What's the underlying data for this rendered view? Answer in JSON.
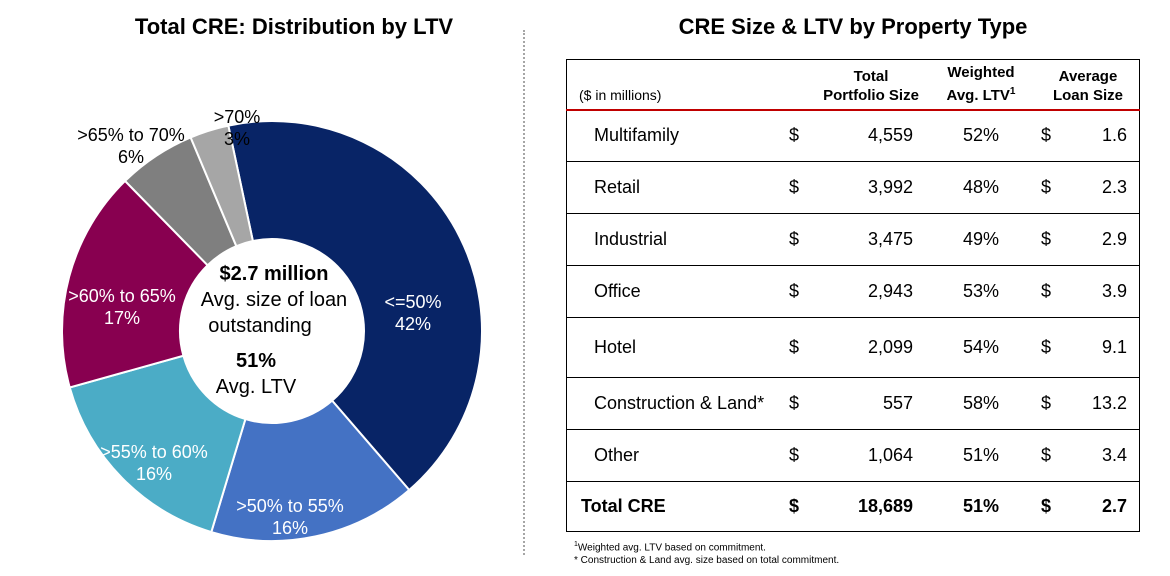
{
  "left_title": "Total CRE: Distribution by LTV",
  "right_title": "CRE Size & LTV by Property Type",
  "colors": {
    "slices": [
      "#082466",
      "#4472c4",
      "#4bacc6",
      "#880050",
      "#7f7f7f",
      "#a6a6a6"
    ],
    "table_header_rule": "#c00000"
  },
  "chart_data": {
    "type": "pie",
    "title": "Total CRE: Distribution by LTV",
    "categories": [
      "<=50%",
      ">50% to 55%",
      ">55% to 60%",
      ">60% to 65%",
      ">65% to 70%",
      ">70%"
    ],
    "values": [
      42,
      16,
      16,
      17,
      6,
      3
    ],
    "value_labels": [
      "42%",
      "16%",
      "16%",
      "17%",
      "6%",
      "3%"
    ],
    "center": {
      "line1": "$2.7 million",
      "line2": "Avg. size of loan",
      "line3": "outstanding",
      "line4": "51%",
      "line5": "Avg. LTV"
    }
  },
  "table": {
    "units_label": "($ in millions)",
    "headers": {
      "size_1": "Total",
      "size_2": "Portfolio Size",
      "ltv_1": "Weighted",
      "ltv_2": "Avg. LTV",
      "ltv_sup": "1",
      "avg_1": "Average",
      "avg_2": "Loan Size"
    },
    "rows": [
      {
        "name": "Multifamily",
        "dollar": "$",
        "size": "4,559",
        "ltv": "52%",
        "dollar2": "$",
        "avg": "1.6"
      },
      {
        "name": "Retail",
        "dollar": "$",
        "size": "3,992",
        "ltv": "48%",
        "dollar2": "$",
        "avg": "2.3"
      },
      {
        "name": "Industrial",
        "dollar": "$",
        "size": "3,475",
        "ltv": "49%",
        "dollar2": "$",
        "avg": "2.9"
      },
      {
        "name": "Office",
        "dollar": "$",
        "size": "2,943",
        "ltv": "53%",
        "dollar2": "$",
        "avg": "3.9"
      },
      {
        "name": "Hotel",
        "dollar": "$",
        "size": "2,099",
        "ltv": "54%",
        "dollar2": "$",
        "avg": "9.1"
      },
      {
        "name": "Construction & Land*",
        "dollar": "$",
        "size": "557",
        "ltv": "58%",
        "dollar2": "$",
        "avg": "13.2"
      },
      {
        "name": "Other",
        "dollar": "$",
        "size": "1,064",
        "ltv": "51%",
        "dollar2": "$",
        "avg": "3.4"
      }
    ],
    "total": {
      "name": "Total CRE",
      "dollar": "$",
      "size": "18,689",
      "ltv": "51%",
      "dollar2": "$",
      "avg": "2.7"
    }
  },
  "footnotes": {
    "note_1_sup": "1",
    "note_1": "Weighted avg. LTV based on commitment.",
    "note_2": "* Construction & Land avg. size based on total commitment."
  }
}
